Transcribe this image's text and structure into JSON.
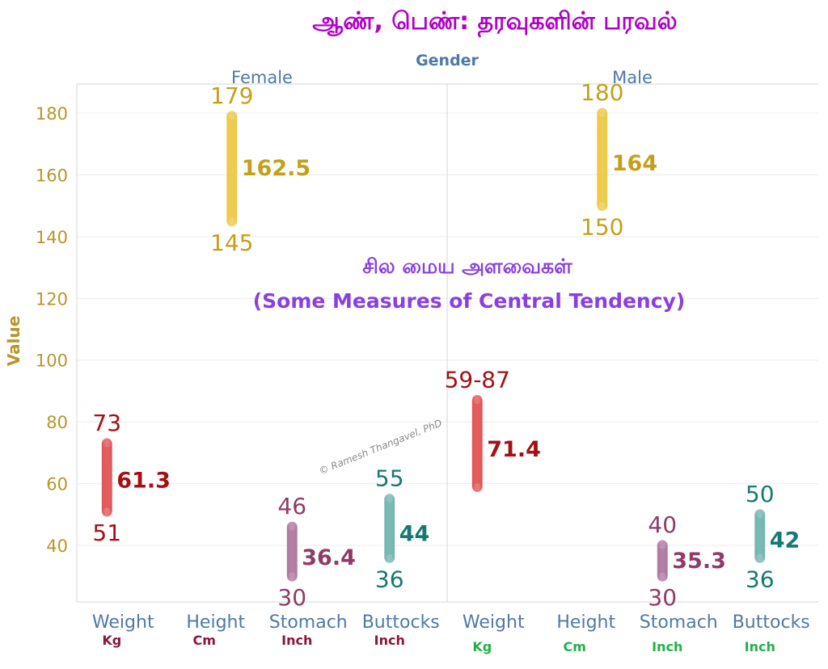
{
  "chart_data": {
    "type": "scatter",
    "title": "ஆண், பெண்: தரவுகளின் பரவல்",
    "header_label": "Gender",
    "ylabel": "Value",
    "ylim": [
      20,
      190
    ],
    "yticks": [
      40,
      60,
      80,
      100,
      120,
      140,
      160,
      180
    ],
    "grid": true,
    "subtitle_ta": "சில மைய அளவைகள்",
    "subtitle_en": "(Some Measures of Central Tendency)",
    "watermark": "© Ramesh Thangavel, PhD",
    "categories": [
      "Weight",
      "Height",
      "Stomach",
      "Buttocks"
    ],
    "colors": {
      "Weight": "#e15759",
      "Height": "#edc948",
      "Stomach": "#b07aa1",
      "Buttocks": "#76b7b2",
      "Weight_text": "#a50f15",
      "Height_text": "#c4a01a",
      "Stomach_text": "#8e3b68",
      "Buttocks_text": "#157a73",
      "title": "#b000c8",
      "subtitle": "#8a3fe0",
      "axis_text": "#b8952b",
      "header_text": "#4e79a7"
    },
    "panels": [
      {
        "name": "Female",
        "unit_color": "#8b1538",
        "units": [
          "Kg",
          "Cm",
          "Inch",
          "Inch"
        ],
        "series": [
          {
            "category": "Weight",
            "min": 51,
            "max": 73,
            "mean": 61.3,
            "min_label": "51",
            "max_label": "73",
            "mean_label": "61.3"
          },
          {
            "category": "Height",
            "min": 145,
            "max": 179,
            "mean": 162.5,
            "min_label": "145",
            "max_label": "179",
            "mean_label": "162.5"
          },
          {
            "category": "Stomach",
            "min": 30,
            "max": 46,
            "mean": 36.4,
            "min_label": "30",
            "max_label": "46",
            "mean_label": "36.4"
          },
          {
            "category": "Buttocks",
            "min": 36,
            "max": 55,
            "mean": 44,
            "min_label": "36",
            "max_label": "55",
            "mean_label": "44"
          }
        ]
      },
      {
        "name": "Male",
        "unit_color": "#22b04a",
        "units": [
          "Kg",
          "Cm",
          "Inch",
          "Inch"
        ],
        "series": [
          {
            "category": "Weight",
            "min": 59,
            "max": 87,
            "mean": 71.4,
            "min_label": "",
            "max_label": "59-87",
            "mean_label": "71.4"
          },
          {
            "category": "Height",
            "min": 150,
            "max": 180,
            "mean": 164,
            "min_label": "150",
            "max_label": "180",
            "mean_label": "164"
          },
          {
            "category": "Stomach",
            "min": 30,
            "max": 40,
            "mean": 35.3,
            "min_label": "30",
            "max_label": "40",
            "mean_label": "35.3"
          },
          {
            "category": "Buttocks",
            "min": 36,
            "max": 50,
            "mean": 42,
            "min_label": "36",
            "max_label": "50",
            "mean_label": "42"
          }
        ]
      }
    ]
  }
}
